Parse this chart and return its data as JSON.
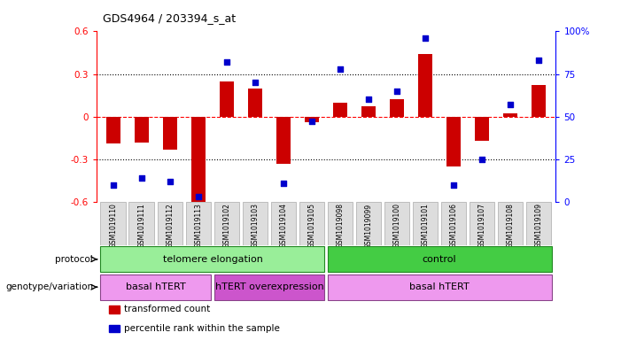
{
  "title": "GDS4964 / 203394_s_at",
  "samples": [
    "GSM1019110",
    "GSM1019111",
    "GSM1019112",
    "GSM1019113",
    "GSM1019102",
    "GSM1019103",
    "GSM1019104",
    "GSM1019105",
    "GSM1019098",
    "GSM1019099",
    "GSM1019100",
    "GSM1019101",
    "GSM1019106",
    "GSM1019107",
    "GSM1019108",
    "GSM1019109"
  ],
  "bar_values": [
    -0.19,
    -0.18,
    -0.23,
    -0.62,
    0.25,
    0.2,
    -0.33,
    -0.04,
    0.1,
    0.07,
    0.12,
    0.44,
    -0.35,
    -0.17,
    0.02,
    0.22
  ],
  "dot_values": [
    10,
    14,
    12,
    3,
    82,
    70,
    11,
    47,
    78,
    60,
    65,
    96,
    10,
    25,
    57,
    83
  ],
  "bar_color": "#cc0000",
  "dot_color": "#0000cc",
  "ylim_left": [
    -0.6,
    0.6
  ],
  "ylim_right": [
    0,
    100
  ],
  "yticks_left": [
    -0.6,
    -0.3,
    0.0,
    0.3,
    0.6
  ],
  "yticks_right": [
    0,
    25,
    50,
    75,
    100
  ],
  "hline_y": [
    0.3,
    0.0,
    -0.3
  ],
  "hline_styles": [
    "dotted",
    "dashed",
    "dotted"
  ],
  "hline_colors": [
    "black",
    "red",
    "black"
  ],
  "protocol_groups": [
    {
      "label": "telomere elongation",
      "start": 0,
      "end": 8,
      "color": "#99ee99"
    },
    {
      "label": "control",
      "start": 8,
      "end": 16,
      "color": "#44cc44"
    }
  ],
  "genotype_groups": [
    {
      "label": "basal hTERT",
      "start": 0,
      "end": 4,
      "color": "#ee99ee"
    },
    {
      "label": "hTERT overexpression",
      "start": 4,
      "end": 8,
      "color": "#cc55cc"
    },
    {
      "label": "basal hTERT",
      "start": 8,
      "end": 16,
      "color": "#ee99ee"
    }
  ],
  "legend_items": [
    {
      "label": "transformed count",
      "color": "#cc0000"
    },
    {
      "label": "percentile rank within the sample",
      "color": "#0000cc"
    }
  ],
  "protocol_label": "protocol",
  "genotype_label": "genotype/variation",
  "bar_width": 0.5,
  "background_color": "#ffffff",
  "sample_box_color": "#dddddd",
  "sample_box_edge": "#aaaaaa"
}
